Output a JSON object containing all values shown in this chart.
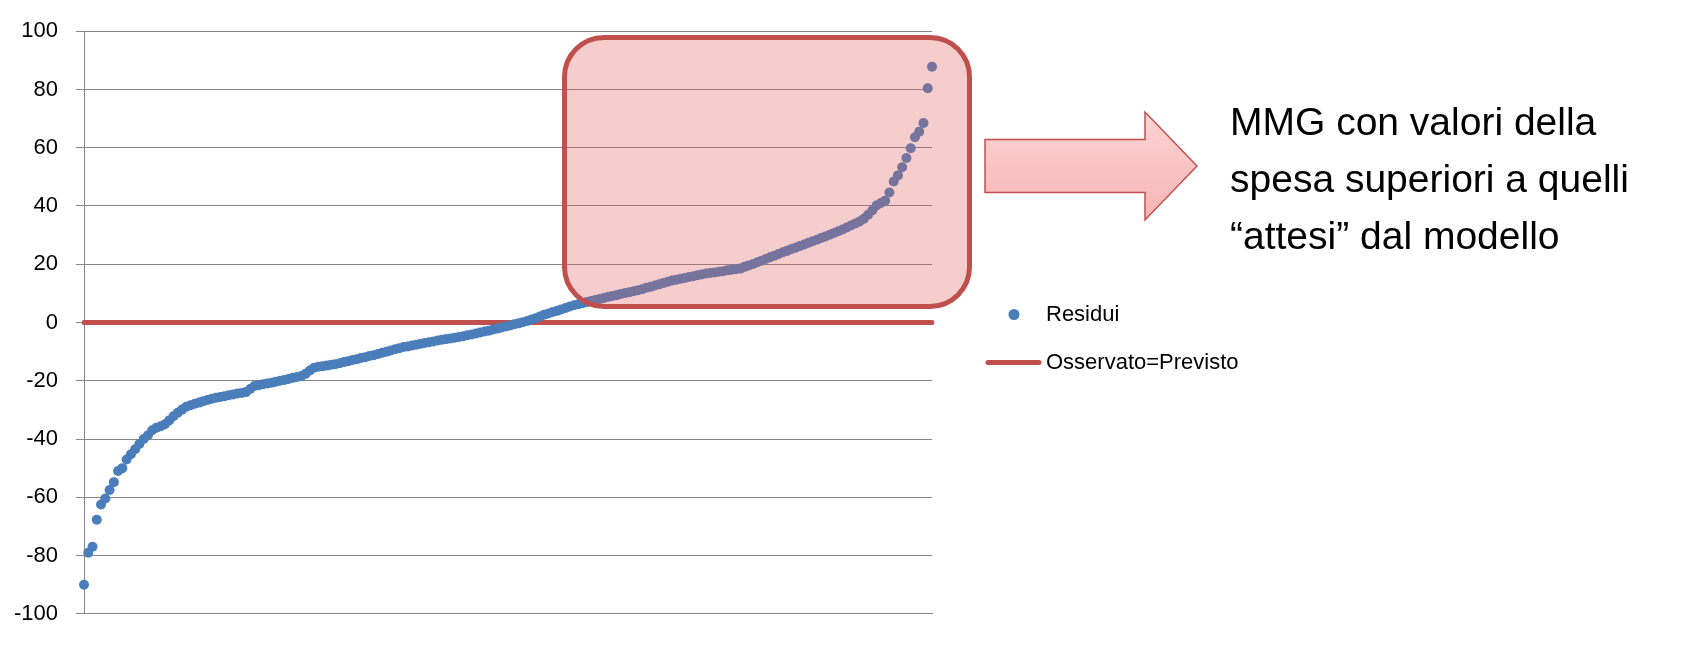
{
  "chart_data": {
    "type": "scatter",
    "categories": [
      null,
      null,
      null,
      null,
      null,
      null,
      null,
      null,
      null,
      null,
      null,
      null,
      null,
      null,
      null,
      null,
      null,
      null,
      null,
      null,
      null,
      null,
      null,
      null,
      null,
      null,
      null,
      null,
      null,
      null,
      null,
      null,
      null,
      null,
      null,
      null,
      null,
      null,
      null,
      null,
      null,
      null,
      null,
      null,
      null,
      null,
      null,
      null,
      null,
      null,
      null,
      null,
      null,
      null,
      null,
      null,
      null,
      null,
      null,
      null,
      null,
      null,
      null,
      null,
      null,
      null,
      null,
      null,
      null,
      null,
      null,
      null,
      null,
      null,
      null,
      null,
      null,
      null,
      null,
      null,
      null,
      null,
      null,
      null,
      null,
      null,
      null,
      null,
      null,
      null,
      null,
      null,
      null,
      null,
      null,
      null,
      null,
      null,
      null,
      null,
      null,
      null,
      null,
      null,
      null,
      null,
      null,
      null,
      null,
      null,
      null,
      null,
      null,
      null,
      null,
      null,
      null,
      null,
      null,
      null,
      null,
      null,
      null,
      null,
      null,
      null,
      null,
      null,
      null,
      null,
      null,
      null,
      null,
      null,
      null,
      null,
      null,
      null,
      null,
      null,
      null,
      null,
      null,
      null,
      null,
      null,
      null,
      null,
      null,
      null,
      null,
      null,
      null,
      null,
      null,
      null,
      null,
      null,
      null,
      null,
      null,
      null,
      null,
      null,
      null,
      null,
      null,
      null,
      null,
      null,
      null,
      null,
      null,
      null,
      null,
      null,
      null,
      null,
      null,
      null,
      null,
      null,
      null,
      null,
      null,
      null,
      null,
      null,
      null,
      null,
      null,
      null,
      null,
      null,
      null,
      null,
      null,
      null,
      null,
      null
    ],
    "series": [
      {
        "name": "Residui",
        "color": "#4a7ebb",
        "values": [
          -90,
          -79,
          -77,
          -67.7,
          -62.5,
          -60.4,
          -57.5,
          -54.8,
          -51,
          -50,
          -47,
          -45.2,
          -43.5,
          -41.7,
          -40,
          -38.7,
          -37,
          -36.1,
          -35.6,
          -34.9,
          -33.6,
          -32.2,
          -31,
          -29.9,
          -28.9,
          -28.4,
          -27.9,
          -27.5,
          -27,
          -26.6,
          -26.2,
          -25.8,
          -25.6,
          -25.3,
          -25,
          -24.7,
          -24.4,
          -24.2,
          -23.9,
          -22.8,
          -21.8,
          -21.5,
          -21.2,
          -20.9,
          -20.7,
          -20.3,
          -20,
          -19.7,
          -19.4,
          -19,
          -18.7,
          -18.4,
          -17.6,
          -16.5,
          -15.5,
          -15.2,
          -15,
          -14.8,
          -14.5,
          -14.3,
          -14,
          -13.6,
          -13.3,
          -12.9,
          -12.6,
          -12.2,
          -11.9,
          -11.5,
          -11.2,
          -10.8,
          -10.4,
          -10,
          -9.6,
          -9.2,
          -8.8,
          -8.4,
          -8.2,
          -7.9,
          -7.6,
          -7.3,
          -7,
          -6.8,
          -6.5,
          -6.2,
          -5.9,
          -5.7,
          -5.5,
          -5.2,
          -5,
          -4.7,
          -4.4,
          -4.1,
          -3.8,
          -3.4,
          -3.1,
          -2.8,
          -2.4,
          -2.1,
          -1.7,
          -1.4,
          -1,
          -0.6,
          -0.3,
          0.1,
          0.5,
          1,
          1.5,
          2.1,
          2.7,
          3.1,
          3.6,
          4,
          4.5,
          5,
          5.5,
          5.9,
          6.3,
          6.6,
          7,
          7.4,
          7.7,
          8.1,
          8.4,
          8.8,
          9.1,
          9.4,
          9.8,
          10.1,
          10.4,
          10.7,
          11.1,
          11.4,
          11.9,
          12.3,
          12.7,
          13.1,
          13.6,
          14,
          14.4,
          14.7,
          15,
          15.3,
          15.6,
          15.9,
          16.2,
          16.5,
          16.8,
          17,
          17.2,
          17.4,
          17.6,
          17.9,
          18.1,
          18.3,
          18.5,
          19.1,
          19.6,
          20.1,
          20.7,
          21.2,
          21.8,
          22.4,
          22.9,
          23.5,
          24.1,
          24.6,
          25.2,
          25.7,
          26.3,
          26.8,
          27.4,
          27.9,
          28.4,
          29,
          29.5,
          30.1,
          30.7,
          31.3,
          31.9,
          32.6,
          33.3,
          34,
          34.7,
          35.6,
          37,
          38.5,
          40.2,
          41,
          41.8,
          44.6,
          48.4,
          50.5,
          53.3,
          56.5,
          59.8,
          63.6,
          65.5,
          68.5,
          80.4,
          87.8
        ]
      },
      {
        "name": "Osservato=Previsto",
        "type": "line",
        "color": "#c0504d",
        "marker": "none",
        "values": [
          0,
          0,
          0,
          0,
          0,
          0,
          0,
          0,
          0,
          0,
          0,
          0,
          0,
          0,
          0,
          0,
          0,
          0,
          0,
          0,
          0,
          0,
          0,
          0,
          0,
          0,
          0,
          0,
          0,
          0,
          0,
          0,
          0,
          0,
          0,
          0,
          0,
          0,
          0,
          0,
          0,
          0,
          0,
          0,
          0,
          0,
          0,
          0,
          0,
          0,
          0,
          0,
          0,
          0,
          0,
          0,
          0,
          0,
          0,
          0,
          0,
          0,
          0,
          0,
          0,
          0,
          0,
          0,
          0,
          0,
          0,
          0,
          0,
          0,
          0,
          0,
          0,
          0,
          0,
          0,
          0,
          0,
          0,
          0,
          0,
          0,
          0,
          0,
          0,
          0,
          0,
          0,
          0,
          0,
          0,
          0,
          0,
          0,
          0,
          0,
          0,
          0,
          0,
          0,
          0,
          0,
          0,
          0,
          0,
          0,
          0,
          0,
          0,
          0,
          0,
          0,
          0,
          0,
          0,
          0,
          0,
          0,
          0,
          0,
          0,
          0,
          0,
          0,
          0,
          0,
          0,
          0,
          0,
          0,
          0,
          0,
          0,
          0,
          0,
          0,
          0,
          0,
          0,
          0,
          0,
          0,
          0,
          0,
          0,
          0,
          0,
          0,
          0,
          0,
          0,
          0,
          0,
          0,
          0,
          0,
          0,
          0,
          0,
          0,
          0,
          0,
          0,
          0,
          0,
          0,
          0,
          0,
          0,
          0,
          0,
          0,
          0,
          0,
          0,
          0,
          0,
          0,
          0,
          0,
          0,
          0,
          0,
          0,
          0,
          0,
          0,
          0,
          0,
          0,
          0,
          0,
          0,
          0,
          0,
          0
        ]
      }
    ],
    "ylim": [
      -100,
      100
    ],
    "yticks": [
      -100,
      -80,
      -60,
      -40,
      -20,
      0,
      20,
      40,
      60,
      80,
      100
    ],
    "grid": "y",
    "legend": "right",
    "marker": "circle",
    "tick_labels": "y",
    "annotations": [
      "MMG con valori della spesa superiori a quelli “attesi” dal modello"
    ]
  }
}
